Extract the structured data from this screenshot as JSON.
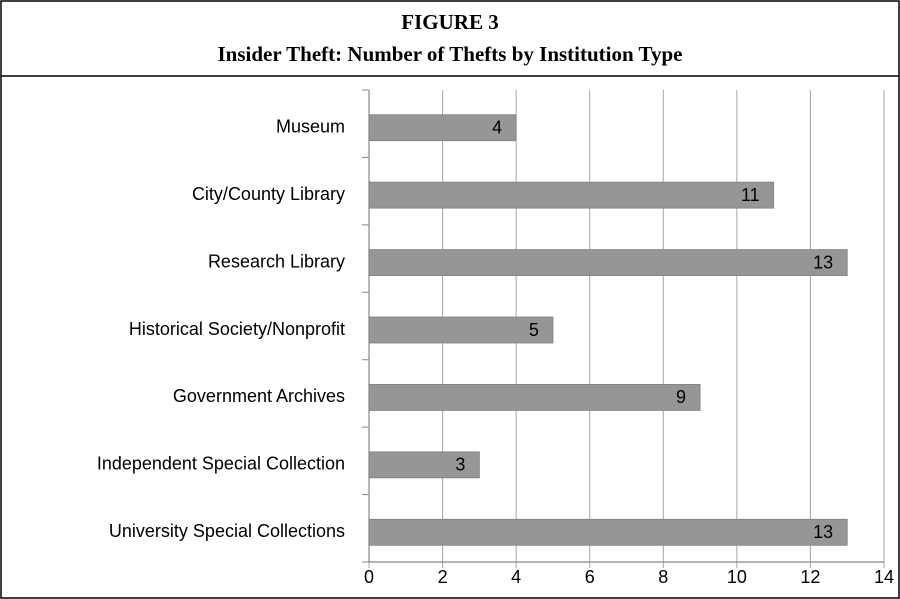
{
  "chart_data": {
    "type": "bar",
    "orientation": "horizontal",
    "title": "FIGURE 3",
    "subtitle": "Insider Theft: Number of Thefts by Institution Type",
    "categories": [
      "Museum",
      "City/County Library",
      "Research Library",
      "Historical Society/Nonprofit",
      "Government Archives",
      "Independent Special Collection",
      "University Special Collections"
    ],
    "values": [
      4,
      11,
      13,
      5,
      9,
      3,
      13
    ],
    "color": "#969696",
    "xlim": [
      0,
      14
    ],
    "xticks": [
      0,
      2,
      4,
      6,
      8,
      10,
      12,
      14
    ],
    "grid": true
  }
}
